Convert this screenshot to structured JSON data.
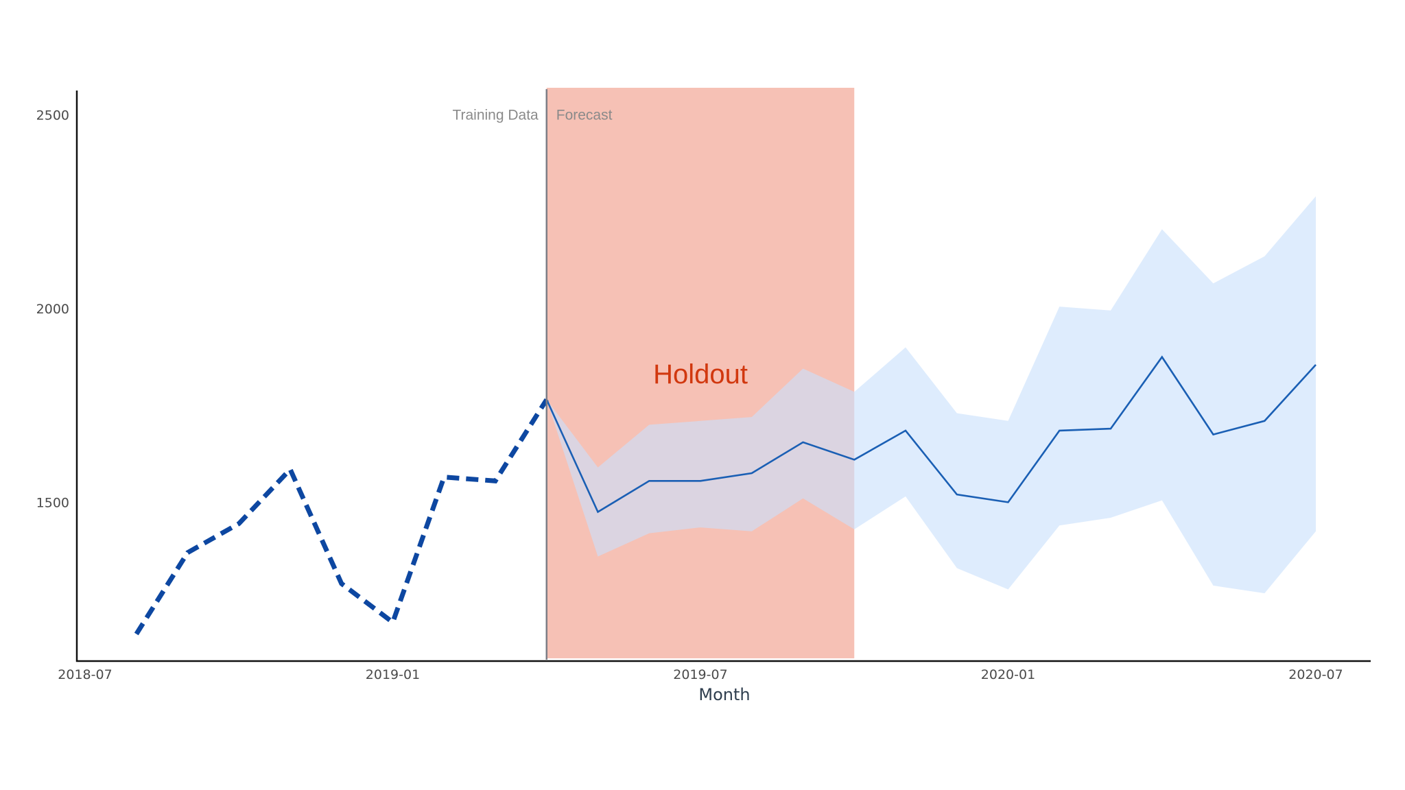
{
  "chart_data": {
    "type": "line",
    "title": "",
    "xlabel": "Month",
    "ylabel": "",
    "x_ticks": [
      "2018-07",
      "2019-01",
      "2019-07",
      "2020-01",
      "2020-07"
    ],
    "y_ticks": [
      1500,
      2000,
      2500
    ],
    "xlim": [
      "2018-07",
      "2020-08"
    ],
    "ylim": [
      1090,
      2570
    ],
    "grid": false,
    "legend": "none",
    "series": [
      {
        "style": "dashed",
        "color": "#0d47a1",
        "x": [
          "2018-08",
          "2018-09",
          "2018-10",
          "2018-11",
          "2018-12",
          "2019-01",
          "2019-02",
          "2019-03",
          "2019-04"
        ],
        "y": [
          1160,
          1370,
          1445,
          1585,
          1290,
          1190,
          1565,
          1555,
          1765
        ]
      },
      {
        "style": "solid",
        "color": "#1a5fb4",
        "x": [
          "2019-04",
          "2019-05",
          "2019-06",
          "2019-07",
          "2019-08",
          "2019-09",
          "2019-10",
          "2019-11",
          "2019-12",
          "2020-01",
          "2020-02",
          "2020-03",
          "2020-04",
          "2020-05",
          "2020-06",
          "2020-07"
        ],
        "y": [
          1765,
          1475,
          1555,
          1555,
          1575,
          1655,
          1610,
          1685,
          1520,
          1500,
          1685,
          1690,
          1875,
          1675,
          1710,
          1855
        ]
      }
    ],
    "band": {
      "color": "#c9e0fc",
      "x": [
        "2019-04",
        "2019-05",
        "2019-06",
        "2019-07",
        "2019-08",
        "2019-09",
        "2019-10",
        "2019-11",
        "2019-12",
        "2020-01",
        "2020-02",
        "2020-03",
        "2020-04",
        "2020-05",
        "2020-06",
        "2020-07"
      ],
      "lower": [
        1765,
        1360,
        1420,
        1435,
        1425,
        1510,
        1430,
        1515,
        1330,
        1275,
        1440,
        1460,
        1505,
        1285,
        1265,
        1425
      ],
      "upper": [
        1765,
        1590,
        1700,
        1710,
        1720,
        1845,
        1785,
        1900,
        1730,
        1710,
        2005,
        1995,
        2205,
        2065,
        2135,
        2290
      ]
    },
    "split_date": "2019-04",
    "holdout_range": [
      "2019-04",
      "2019-10"
    ],
    "holdout_color": "#f2a999",
    "annotations": {
      "left": "Training Data",
      "right": "Forecast",
      "holdout": "Holdout"
    }
  }
}
